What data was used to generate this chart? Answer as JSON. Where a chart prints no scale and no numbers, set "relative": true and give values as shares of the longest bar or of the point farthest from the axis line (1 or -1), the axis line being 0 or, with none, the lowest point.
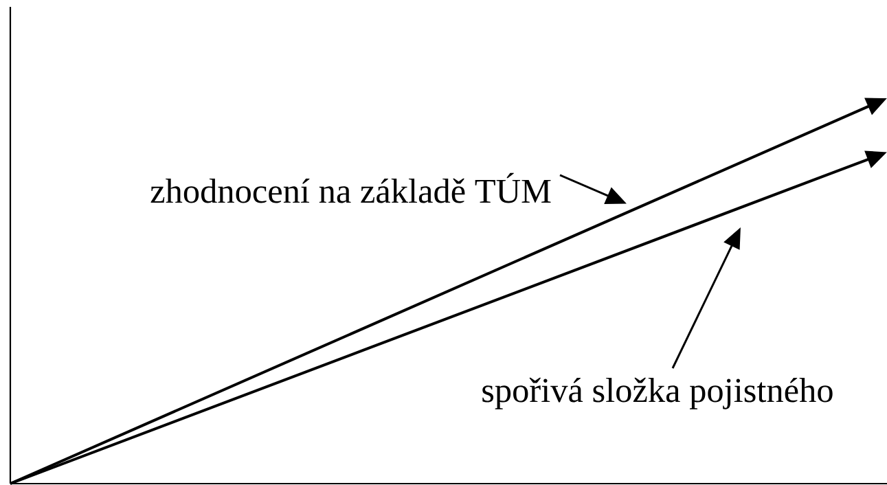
{
  "chart_data": {
    "type": "line",
    "relative": true,
    "categories": [
      null,
      null
    ],
    "series": [
      {
        "name": "zhodnocení na základě TÚM",
        "color": "#000000",
        "values": [
          0,
          1
        ]
      },
      {
        "name": "spořivá složka pojistného",
        "color": "#000000",
        "values": [
          0,
          0.86
        ]
      }
    ]
  }
}
